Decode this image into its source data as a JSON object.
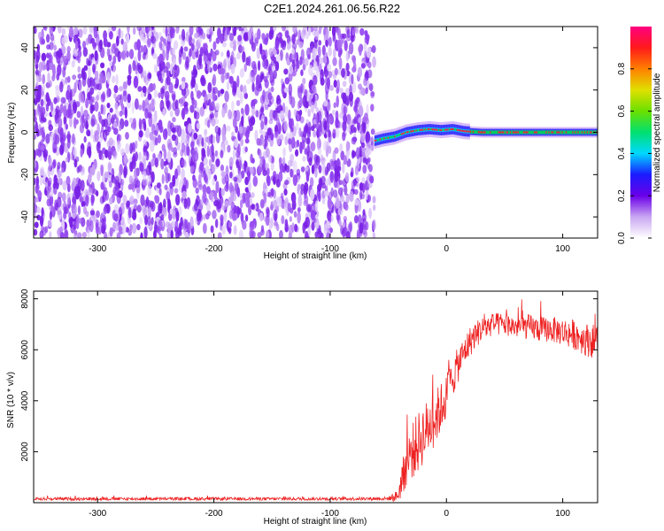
{
  "title": "C2E1.2024.261.06.56.R22",
  "colors": {
    "snr_line": "#ee2222",
    "noise": "#7a22e6",
    "background": "#ffffff"
  },
  "chart_data": [
    {
      "type": "heatmap",
      "title": "C2E1.2024.261.06.56.R22",
      "xlabel": "Height of straight line (km)",
      "ylabel": "Frequency (Hz)",
      "xlim": [
        -355,
        130
      ],
      "ylim": [
        -50,
        50
      ],
      "x_ticks": [
        -300,
        -200,
        -100,
        0,
        100
      ],
      "y_ticks": [
        -40,
        -20,
        0,
        20,
        40
      ],
      "noise_region_x": [
        -355,
        -62
      ],
      "signal_track": {
        "x": [
          -62,
          -55,
          -45,
          -35,
          -25,
          -15,
          -5,
          5,
          15,
          30,
          50,
          70,
          90,
          110,
          130
        ],
        "freq_hz": [
          -4,
          -3,
          -2,
          0,
          1,
          1.5,
          1,
          1.5,
          0.5,
          0,
          0,
          0,
          0,
          0,
          0
        ]
      },
      "colorbar": {
        "label": "Normalized spectral amplitude",
        "range": [
          0.0,
          1.0
        ],
        "ticks": [
          0.0,
          0.2,
          0.4,
          0.6,
          0.8
        ]
      }
    },
    {
      "type": "line",
      "xlabel": "Height of straight line (km)",
      "ylabel": "SNR (10 * v/v)",
      "xlim": [
        -355,
        130
      ],
      "ylim": [
        0,
        8300
      ],
      "x_ticks": [
        -300,
        -200,
        -100,
        0,
        100
      ],
      "y_ticks": [
        2000,
        4000,
        6000,
        8000
      ],
      "series": [
        {
          "name": "SNR",
          "x": [
            -355,
            -300,
            -200,
            -100,
            -50,
            -42,
            -38,
            -35,
            -30,
            -25,
            -20,
            -15,
            -10,
            -5,
            0,
            5,
            10,
            15,
            20,
            25,
            30,
            40,
            50,
            60,
            70,
            80,
            90,
            100,
            110,
            120,
            130
          ],
          "mean": [
            150,
            150,
            150,
            150,
            160,
            260,
            900,
            1500,
            2000,
            2300,
            2700,
            3000,
            3300,
            3700,
            4200,
            4900,
            5400,
            5900,
            6300,
            6600,
            6800,
            7000,
            7000,
            6900,
            6900,
            6800,
            6800,
            6700,
            6600,
            6400,
            6300
          ],
          "spread": [
            60,
            60,
            60,
            60,
            70,
            250,
            700,
            900,
            1100,
            1200,
            1200,
            1100,
            1100,
            1000,
            900,
            800,
            700,
            600,
            600,
            550,
            500,
            450,
            450,
            450,
            500,
            500,
            500,
            550,
            600,
            650,
            700
          ]
        }
      ]
    }
  ]
}
